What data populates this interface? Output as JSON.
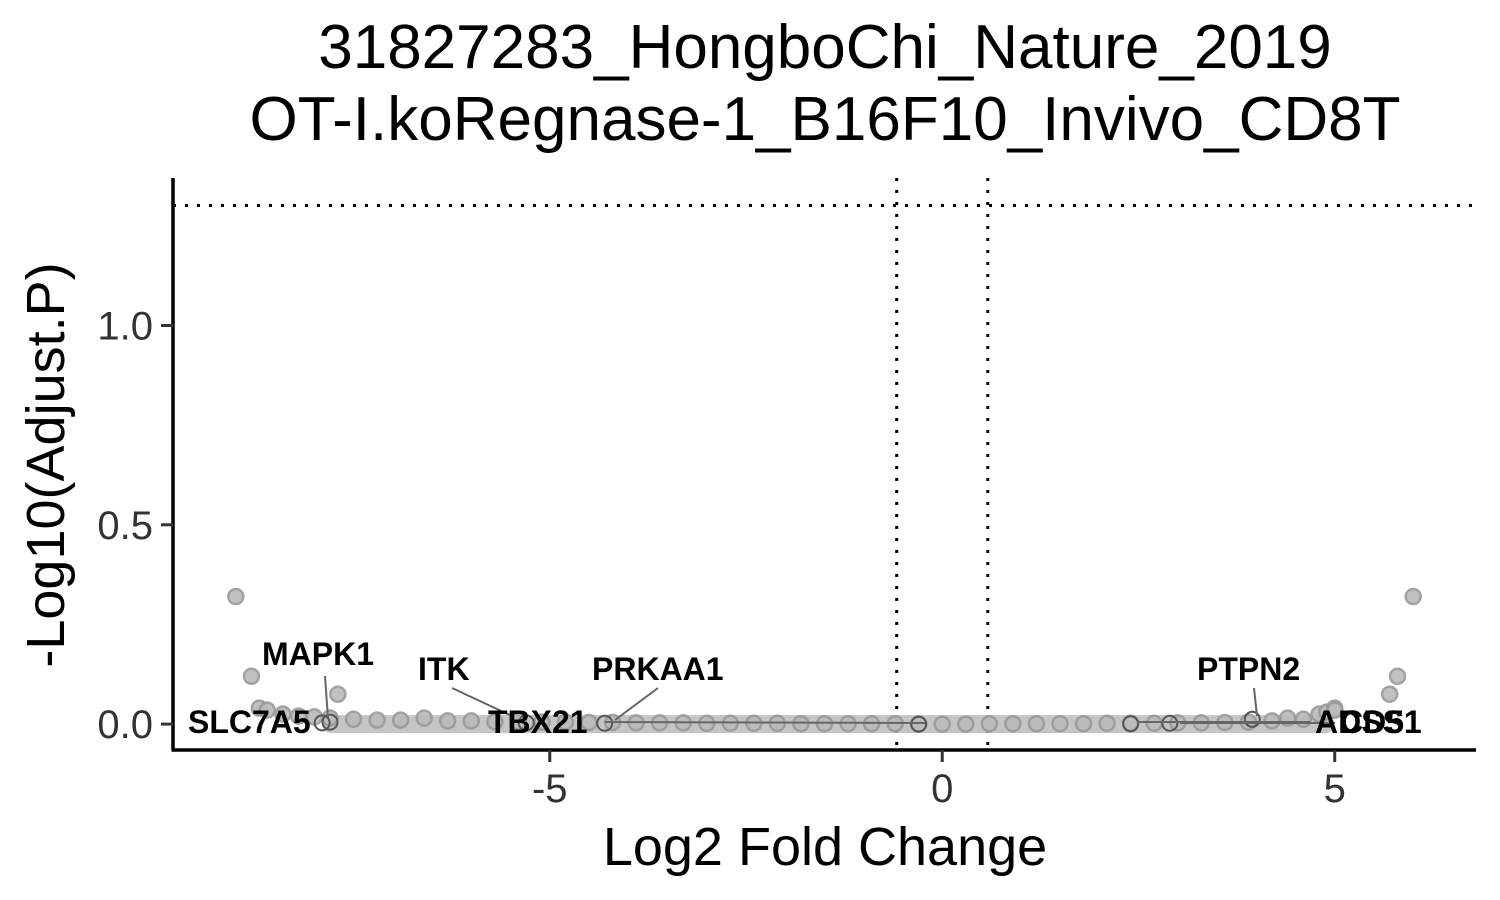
{
  "chart_data": {
    "type": "scatter",
    "title": [
      "31827283_HongboChi_Nature_2019",
      "OT-I.koRegnase-1_B16F10_Invivo_CD8T"
    ],
    "xlabel": "Log2 Fold Change",
    "ylabel": "-Log10(Adjust.P)",
    "xlim": [
      -9.8,
      6.8
    ],
    "ylim": [
      -0.065,
      1.37
    ],
    "xticks": [
      -5,
      0,
      5
    ],
    "xtick_labels": [
      "-5",
      "0",
      "5"
    ],
    "yticks": [
      0.0,
      0.5,
      1.0
    ],
    "ytick_labels": [
      "0.0",
      "0.5",
      "1.0"
    ],
    "grid": false,
    "reference_lines": {
      "vertical": [
        -0.58,
        0.58
      ],
      "horizontal": [
        1.301
      ]
    },
    "point_color": "#bbbbbb",
    "point_stroke": "#999999",
    "highlight_stroke": "#555555",
    "line_color": "#000000",
    "leader_color": "#666666",
    "points": [
      {
        "x": -9.0,
        "y": 0.32
      },
      {
        "x": 6.0,
        "y": 0.32
      },
      {
        "x": -8.8,
        "y": 0.12
      },
      {
        "x": 5.8,
        "y": 0.12
      },
      {
        "x": -7.7,
        "y": 0.075
      },
      {
        "x": 5.7,
        "y": 0.075
      },
      {
        "x": -8.7,
        "y": 0.04
      },
      {
        "x": -8.6,
        "y": 0.035
      },
      {
        "x": -8.4,
        "y": 0.025
      },
      {
        "x": -8.2,
        "y": 0.02
      },
      {
        "x": -8.0,
        "y": 0.018
      },
      {
        "x": -7.8,
        "y": 0.015
      },
      {
        "x": -7.5,
        "y": 0.012
      },
      {
        "x": -7.2,
        "y": 0.01
      },
      {
        "x": -6.9,
        "y": 0.01
      },
      {
        "x": -6.6,
        "y": 0.015
      },
      {
        "x": -6.3,
        "y": 0.008
      },
      {
        "x": -6.0,
        "y": 0.008
      },
      {
        "x": -5.7,
        "y": 0.006
      },
      {
        "x": -5.4,
        "y": 0.006
      },
      {
        "x": -5.1,
        "y": 0.005
      },
      {
        "x": -4.8,
        "y": 0.005
      },
      {
        "x": -4.5,
        "y": 0.004
      },
      {
        "x": -4.2,
        "y": 0.004
      },
      {
        "x": -3.9,
        "y": 0.003
      },
      {
        "x": -3.6,
        "y": 0.003
      },
      {
        "x": -3.3,
        "y": 0.003
      },
      {
        "x": -3.0,
        "y": 0.002
      },
      {
        "x": -2.7,
        "y": 0.002
      },
      {
        "x": -2.4,
        "y": 0.002
      },
      {
        "x": -2.1,
        "y": 0.002
      },
      {
        "x": -1.8,
        "y": 0.001
      },
      {
        "x": -1.5,
        "y": 0.001
      },
      {
        "x": -1.2,
        "y": 0.001
      },
      {
        "x": -0.9,
        "y": 0.001
      },
      {
        "x": -0.6,
        "y": 0.001
      },
      {
        "x": -0.3,
        "y": 0.0
      },
      {
        "x": 0.0,
        "y": 0.0
      },
      {
        "x": 0.3,
        "y": 0.0
      },
      {
        "x": 0.6,
        "y": 0.001
      },
      {
        "x": 0.9,
        "y": 0.001
      },
      {
        "x": 1.2,
        "y": 0.001
      },
      {
        "x": 1.5,
        "y": 0.001
      },
      {
        "x": 1.8,
        "y": 0.001
      },
      {
        "x": 2.1,
        "y": 0.002
      },
      {
        "x": 2.4,
        "y": 0.002
      },
      {
        "x": 2.7,
        "y": 0.002
      },
      {
        "x": 3.0,
        "y": 0.003
      },
      {
        "x": 3.3,
        "y": 0.003
      },
      {
        "x": 3.6,
        "y": 0.004
      },
      {
        "x": 3.9,
        "y": 0.005
      },
      {
        "x": 4.2,
        "y": 0.008
      },
      {
        "x": 4.4,
        "y": 0.015
      },
      {
        "x": 4.6,
        "y": 0.012
      },
      {
        "x": 4.8,
        "y": 0.025
      },
      {
        "x": 4.9,
        "y": 0.03
      },
      {
        "x": 5.0,
        "y": 0.04
      },
      {
        "x": 5.0,
        "y": 0.035
      }
    ],
    "labeled_genes": [
      {
        "name": "MAPK1",
        "x": -7.8,
        "y": 0.005
      },
      {
        "name": "SLC7A5",
        "x": -7.9,
        "y": 0.003
      },
      {
        "name": "ITK",
        "x": -5.3,
        "y": 0.003
      },
      {
        "name": "TBX21",
        "x": -0.3,
        "y": 0.0
      },
      {
        "name": "PRKAA1",
        "x": -4.3,
        "y": 0.002
      },
      {
        "name": "PTPN2",
        "x": 3.95,
        "y": 0.012
      },
      {
        "name": "ADSS1",
        "x": 2.4,
        "y": 0.001
      },
      {
        "name": "CD5",
        "x": 2.9,
        "y": 0.002
      }
    ]
  }
}
